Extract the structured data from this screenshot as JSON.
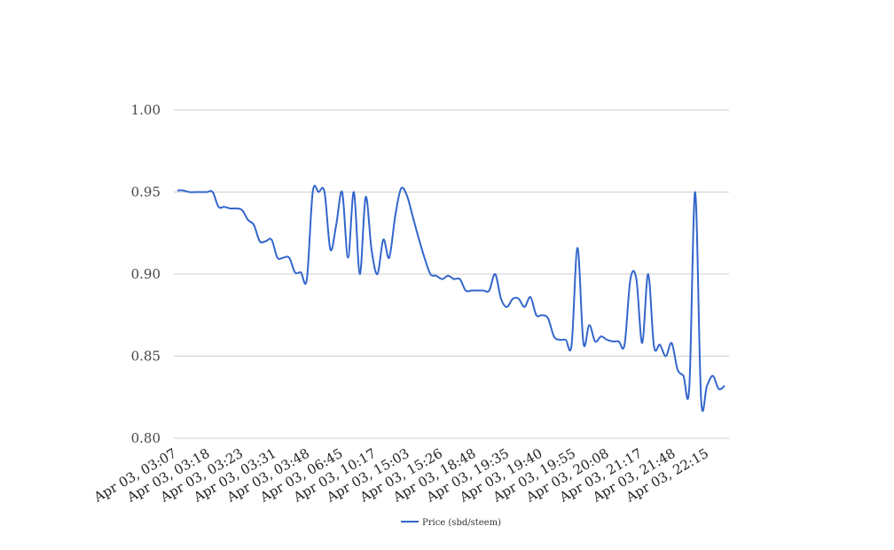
{
  "chart_data": {
    "type": "line",
    "title": "",
    "xlabel": "",
    "ylabel": "",
    "ylim": [
      0.8,
      1.0
    ],
    "grid": "horizontal",
    "legend_position": "bottom-center",
    "y_ticks": [
      "0.80",
      "0.85",
      "0.90",
      "0.95",
      "1.00"
    ],
    "x_tick_labels": [
      "Apr 03, 03:07",
      "Apr 03, 03:18",
      "Apr 03, 03:23",
      "Apr 03, 03:31",
      "Apr 03, 03:48",
      "Apr 03, 06:45",
      "Apr 03, 10:17",
      "Apr 03, 15:03",
      "Apr 03, 15:26",
      "Apr 03, 18:48",
      "Apr 03, 19:35",
      "Apr 03, 19:40",
      "Apr 03, 19:55",
      "Apr 03, 20:08",
      "Apr 03, 21:17",
      "Apr 03, 21:48",
      "Apr 03, 22:15"
    ],
    "series": [
      {
        "name": "Price (sbd/steem)",
        "color": "#3366cc",
        "values": [
          0.951,
          0.951,
          0.95,
          0.95,
          0.95,
          0.95,
          0.95,
          0.941,
          0.941,
          0.94,
          0.94,
          0.939,
          0.933,
          0.93,
          0.92,
          0.92,
          0.921,
          0.91,
          0.91,
          0.91,
          0.901,
          0.901,
          0.897,
          0.95,
          0.95,
          0.95,
          0.915,
          0.93,
          0.95,
          0.91,
          0.95,
          0.9,
          0.947,
          0.915,
          0.9,
          0.921,
          0.91,
          0.935,
          0.952,
          0.948,
          0.935,
          0.922,
          0.91,
          0.9,
          0.899,
          0.897,
          0.899,
          0.897,
          0.897,
          0.89,
          0.89,
          0.89,
          0.89,
          0.89,
          0.9,
          0.885,
          0.88,
          0.885,
          0.885,
          0.88,
          0.886,
          0.875,
          0.875,
          0.873,
          0.862,
          0.86,
          0.86,
          0.857,
          0.916,
          0.858,
          0.869,
          0.859,
          0.862,
          0.86,
          0.859,
          0.859,
          0.857,
          0.897,
          0.897,
          0.858,
          0.9,
          0.856,
          0.857,
          0.85,
          0.858,
          0.842,
          0.838,
          0.831,
          0.95,
          0.824,
          0.832,
          0.838,
          0.83,
          0.832
        ]
      }
    ]
  }
}
